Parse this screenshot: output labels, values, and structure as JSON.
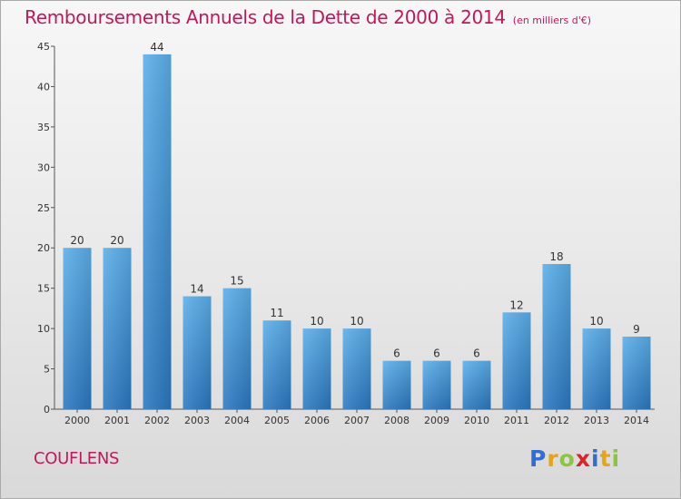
{
  "chart_data": {
    "type": "bar",
    "title": "Remboursements Annuels de la Dette de 2000 à 2014",
    "unit": "(en milliers d'€)",
    "categories": [
      "2000",
      "2001",
      "2002",
      "2003",
      "2004",
      "2005",
      "2006",
      "2007",
      "2008",
      "2009",
      "2010",
      "2011",
      "2012",
      "2013",
      "2014"
    ],
    "values": [
      20,
      20,
      44,
      14,
      15,
      11,
      10,
      10,
      6,
      6,
      6,
      12,
      18,
      10,
      9
    ],
    "ylim": [
      0,
      45
    ],
    "yticks": [
      0,
      5,
      10,
      15,
      20,
      25,
      30,
      35,
      40,
      45
    ],
    "grid": false,
    "bar_color": "#3d8fd6",
    "xlabel": "",
    "ylabel": ""
  },
  "place": "COUFLENS",
  "logo": {
    "letters": [
      "P",
      "r",
      "o",
      "x",
      "i",
      "t",
      "i"
    ],
    "colors": [
      "#2f6fd0",
      "#e8a317",
      "#8cc63f",
      "#d9262c",
      "#2f6fd0",
      "#e8a317",
      "#8cc63f"
    ]
  }
}
